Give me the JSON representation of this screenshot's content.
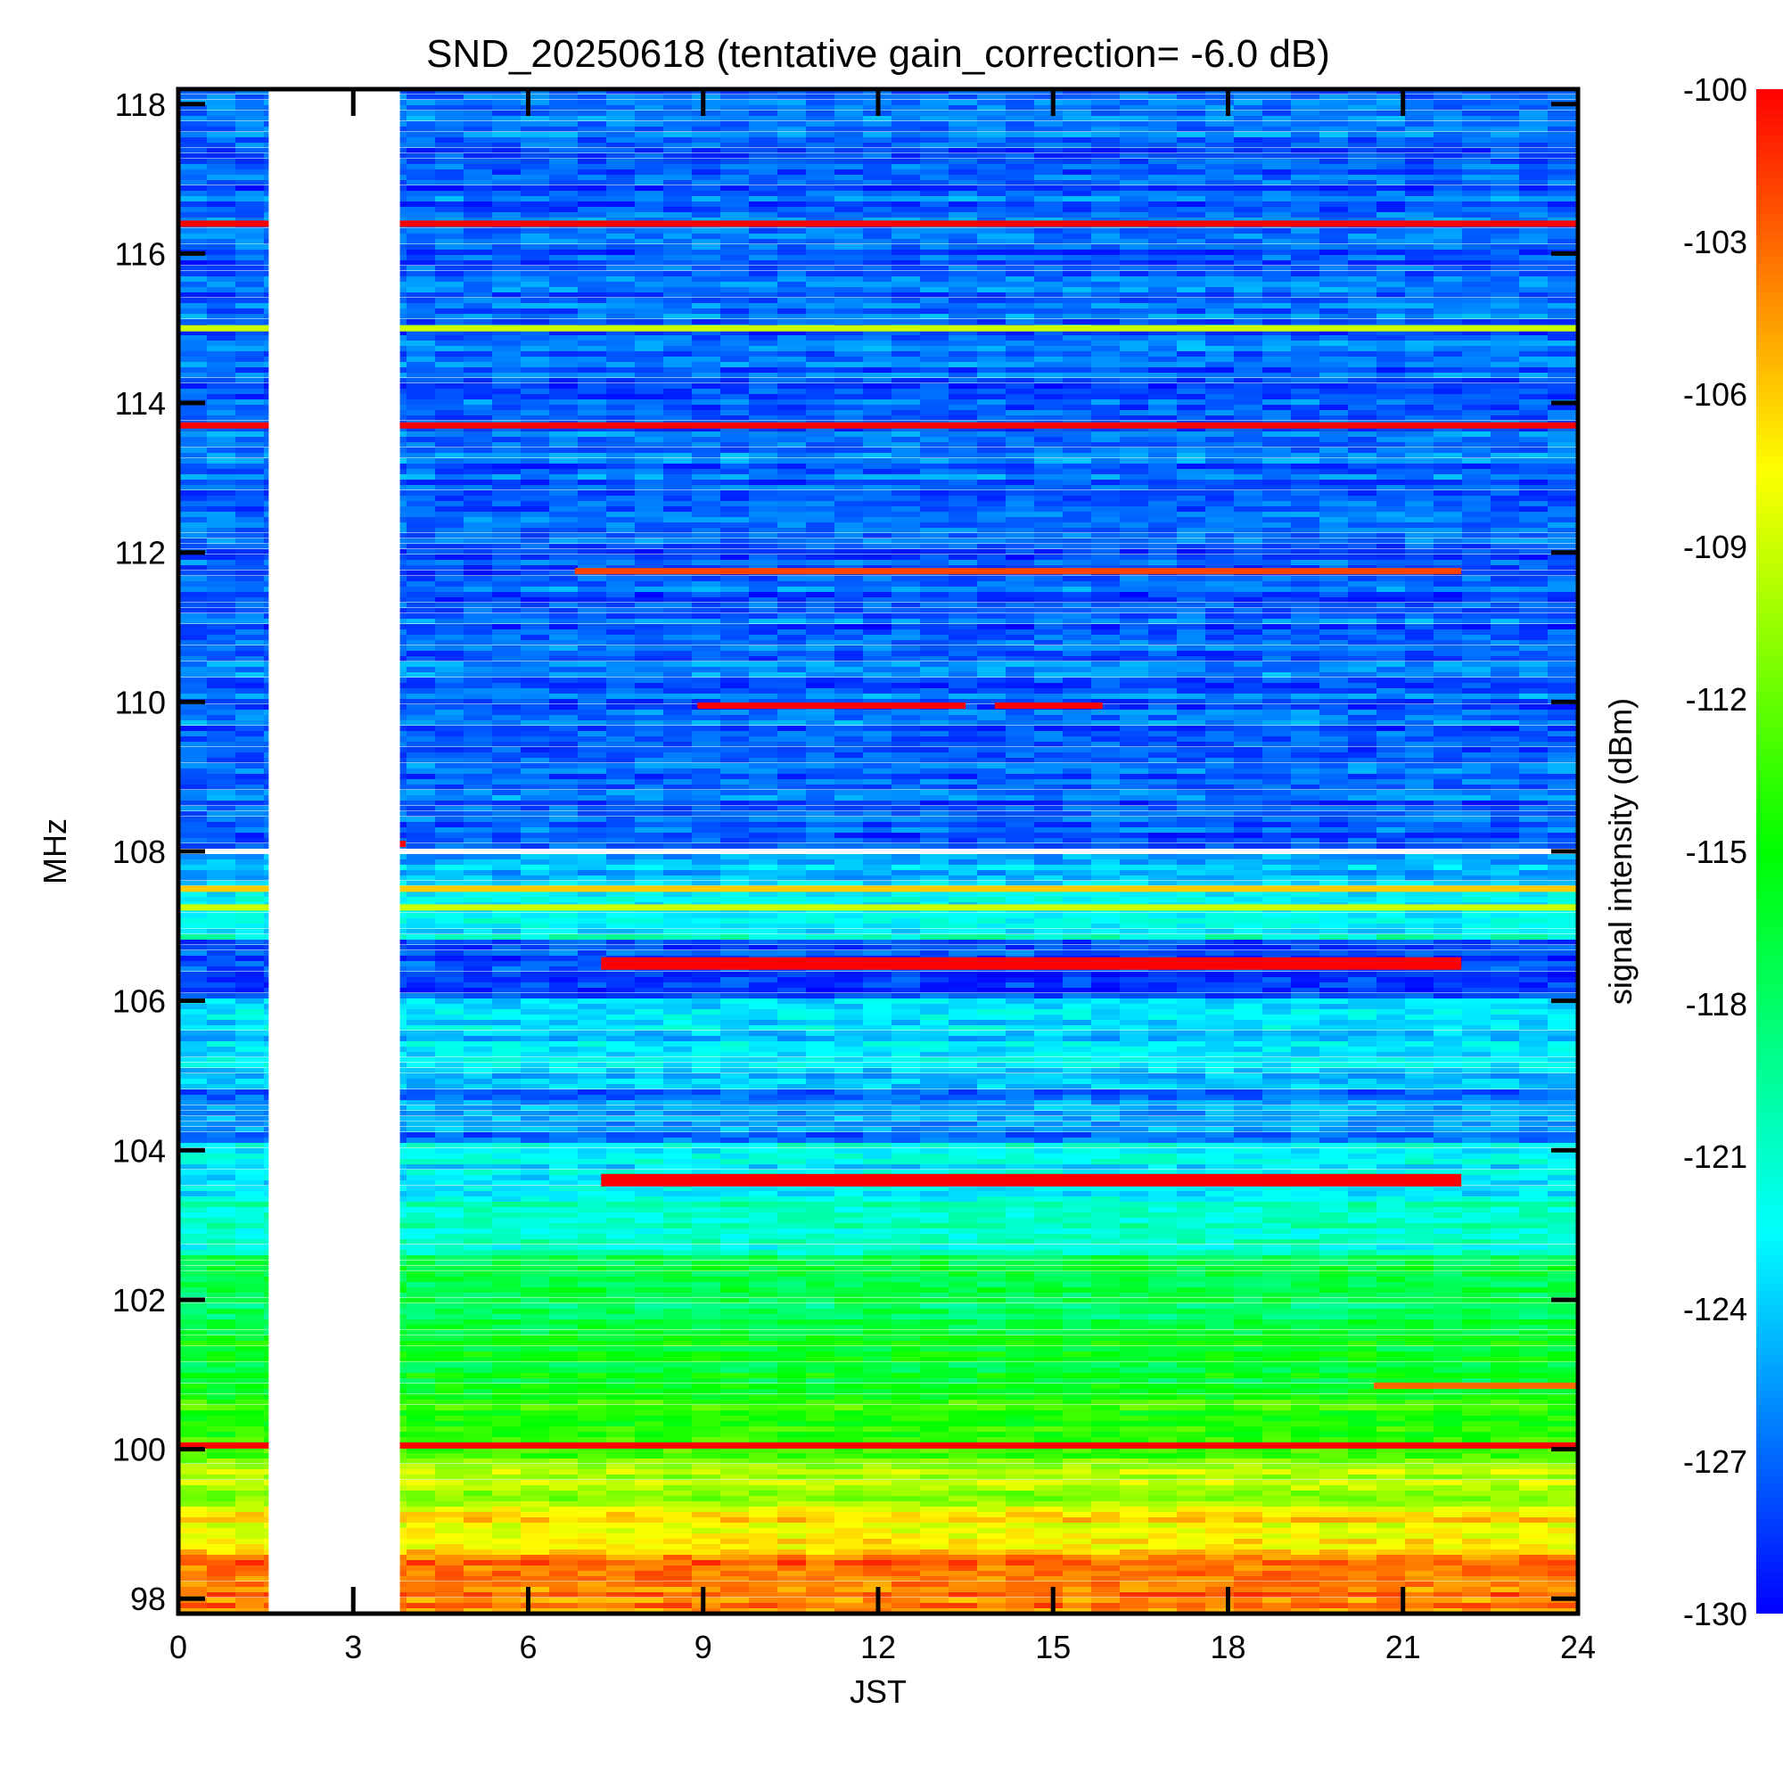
{
  "chart_data": {
    "type": "heatmap",
    "title": "SND_20250618 (tentative gain_correction= -6.0 dB)",
    "xlabel": "JST",
    "ylabel": "MHz",
    "xlim": [
      0,
      24
    ],
    "ylim": [
      97.8,
      118.2
    ],
    "xticks": [
      0,
      3,
      6,
      9,
      12,
      15,
      18,
      21,
      24
    ],
    "yticks": [
      98,
      100,
      102,
      104,
      106,
      108,
      110,
      112,
      114,
      116,
      118
    ],
    "colorbar": {
      "label": "signal intensity (dBm)",
      "range": [
        -130,
        -100
      ],
      "ticks": [
        -100,
        -103,
        -106,
        -109,
        -112,
        -115,
        -118,
        -121,
        -124,
        -127,
        -130
      ],
      "colormap": [
        "#0000ff",
        "#0080ff",
        "#00ffff",
        "#00ff80",
        "#00ff00",
        "#80ff00",
        "#ffff00",
        "#ff8000",
        "#ff0000"
      ]
    },
    "data_gaps_jst": [
      [
        1.55,
        3.8
      ]
    ],
    "background_by_freq_mhz": [
      {
        "from": 97.8,
        "to": 98.6,
        "dbm": -104
      },
      {
        "from": 98.6,
        "to": 99.2,
        "dbm": -107
      },
      {
        "from": 99.2,
        "to": 99.9,
        "dbm": -110
      },
      {
        "from": 99.9,
        "to": 100.7,
        "dbm": -114
      },
      {
        "from": 100.7,
        "to": 101.6,
        "dbm": -116
      },
      {
        "from": 101.6,
        "to": 102.6,
        "dbm": -118
      },
      {
        "from": 102.6,
        "to": 103.4,
        "dbm": -121
      },
      {
        "from": 103.4,
        "to": 104.1,
        "dbm": -123
      },
      {
        "from": 104.1,
        "to": 104.8,
        "dbm": -126
      },
      {
        "from": 104.8,
        "to": 106.0,
        "dbm": -124
      },
      {
        "from": 106.0,
        "to": 106.8,
        "dbm": -128
      },
      {
        "from": 106.8,
        "to": 107.6,
        "dbm": -122
      },
      {
        "from": 107.6,
        "to": 108.0,
        "dbm": -125
      },
      {
        "from": 108.0,
        "to": 118.2,
        "dbm": -127
      }
    ],
    "bands": [
      {
        "freq_mhz": 116.4,
        "dbm": -100,
        "t_start": 0,
        "t_end": 24
      },
      {
        "freq_mhz": 115.0,
        "dbm": -109,
        "t_start": 0,
        "t_end": 24
      },
      {
        "freq_mhz": 113.7,
        "dbm": -100,
        "t_start": 0,
        "t_end": 24
      },
      {
        "freq_mhz": 111.75,
        "dbm": -102,
        "t_start": 6.8,
        "t_end": 22.0
      },
      {
        "freq_mhz": 109.95,
        "dbm": -100,
        "t_start": 8.9,
        "t_end": 13.5
      },
      {
        "freq_mhz": 109.95,
        "dbm": -100,
        "t_start": 14.0,
        "t_end": 15.85
      },
      {
        "freq_mhz": 108.1,
        "dbm": -100,
        "t_start": 3.0,
        "t_end": 3.9
      },
      {
        "freq_mhz": 107.5,
        "dbm": -106,
        "t_start": 0,
        "t_end": 24
      },
      {
        "freq_mhz": 107.25,
        "dbm": -109,
        "t_start": 0,
        "t_end": 24
      },
      {
        "freq_mhz": 106.5,
        "dbm": -100,
        "t_start": 7.25,
        "t_end": 22.0
      },
      {
        "freq_mhz": 103.6,
        "dbm": -100,
        "t_start": 7.25,
        "t_end": 22.0
      },
      {
        "freq_mhz": 100.85,
        "dbm": -103,
        "t_start": 20.5,
        "t_end": 24
      },
      {
        "freq_mhz": 100.05,
        "dbm": -100,
        "t_start": 0,
        "t_end": 24
      }
    ]
  }
}
